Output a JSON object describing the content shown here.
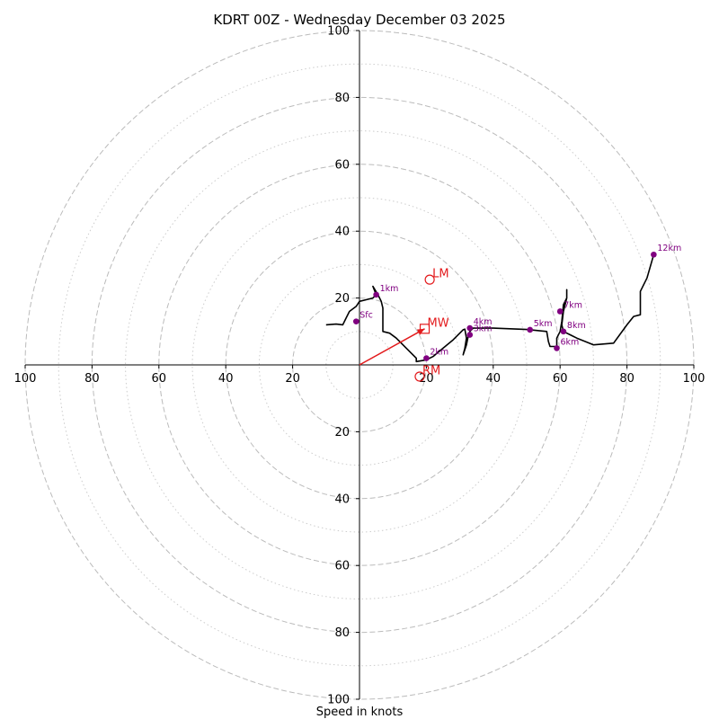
{
  "chart_data": {
    "type": "hodograph",
    "title": "KDRT 00Z - Wednesday December 03 2025",
    "xlabel": "Speed in knots",
    "units": "knots",
    "range": [
      -100,
      100
    ],
    "ring_major": [
      20,
      40,
      60,
      80,
      100
    ],
    "ring_minor": [
      10,
      30,
      50,
      70,
      90
    ],
    "tick_values": [
      100,
      80,
      60,
      40,
      20
    ],
    "colors": {
      "trace": "#000000",
      "marker": "#800080",
      "vector": "#e31a1c",
      "grid_major": "#bbbbbb",
      "grid_minor": "#cccccc",
      "axis": "#000000"
    },
    "trace": [
      [
        -10,
        12
      ],
      [
        -7,
        12.2
      ],
      [
        -5,
        12
      ],
      [
        -4,
        14
      ],
      [
        -3,
        16
      ],
      [
        -1,
        17.5
      ],
      [
        0,
        19
      ],
      [
        2,
        19.5
      ],
      [
        4,
        20
      ],
      [
        5,
        21
      ],
      [
        4,
        23.5
      ],
      [
        5.5,
        21
      ],
      [
        6.5,
        19
      ],
      [
        7,
        17
      ],
      [
        7,
        10
      ],
      [
        9,
        9.5
      ],
      [
        11,
        8
      ],
      [
        14,
        5
      ],
      [
        17,
        2
      ],
      [
        17,
        1
      ],
      [
        20,
        1.5
      ],
      [
        22,
        2.5
      ],
      [
        25,
        5
      ],
      [
        28,
        7.5
      ],
      [
        31,
        10.5
      ],
      [
        31.5,
        10.7
      ],
      [
        32,
        8
      ],
      [
        31.5,
        5
      ],
      [
        31,
        3
      ],
      [
        32,
        6
      ],
      [
        32.5,
        8.5
      ],
      [
        33,
        10
      ],
      [
        34,
        11
      ],
      [
        40,
        11
      ],
      [
        50,
        10.6
      ],
      [
        56,
        10
      ],
      [
        56.5,
        7
      ],
      [
        57,
        5.5
      ],
      [
        59,
        5.5
      ],
      [
        59,
        8
      ],
      [
        60,
        10
      ],
      [
        60.5,
        13
      ],
      [
        61,
        18
      ],
      [
        62,
        20
      ],
      [
        62,
        22.5
      ],
      [
        62,
        20
      ],
      [
        61,
        16
      ],
      [
        60.5,
        12
      ],
      [
        61,
        10
      ],
      [
        65,
        8
      ],
      [
        70,
        6
      ],
      [
        76,
        6.5
      ],
      [
        80,
        12
      ],
      [
        82,
        14.5
      ],
      [
        84,
        15
      ],
      [
        84,
        22
      ],
      [
        86,
        26
      ],
      [
        88,
        33
      ]
    ],
    "markers": [
      {
        "label": "Sfc",
        "u": -1,
        "v": 13
      },
      {
        "label": "1km",
        "u": 5,
        "v": 21
      },
      {
        "label": "2km",
        "u": 20,
        "v": 2
      },
      {
        "label": "4km",
        "u": 33,
        "v": 11
      },
      {
        "label": "5km",
        "u": 51,
        "v": 10.5
      },
      {
        "label": "3km",
        "u": 33,
        "v": 9
      },
      {
        "label": "6km",
        "u": 59,
        "v": 5
      },
      {
        "label": "7km",
        "u": 60,
        "v": 16
      },
      {
        "label": "8km",
        "u": 61,
        "v": 10
      },
      {
        "label": "12km",
        "u": 88,
        "v": 33
      }
    ],
    "storm_points": [
      {
        "label": "LM",
        "u": 21,
        "v": 25.5,
        "shape": "circle"
      },
      {
        "label": "MW",
        "u": 19.5,
        "v": 10.8,
        "shape": "square"
      },
      {
        "label": "RM",
        "u": 18,
        "v": -3.5,
        "shape": "circle"
      }
    ],
    "mean_wind_vector": {
      "u": 19.5,
      "v": 10.8
    }
  }
}
